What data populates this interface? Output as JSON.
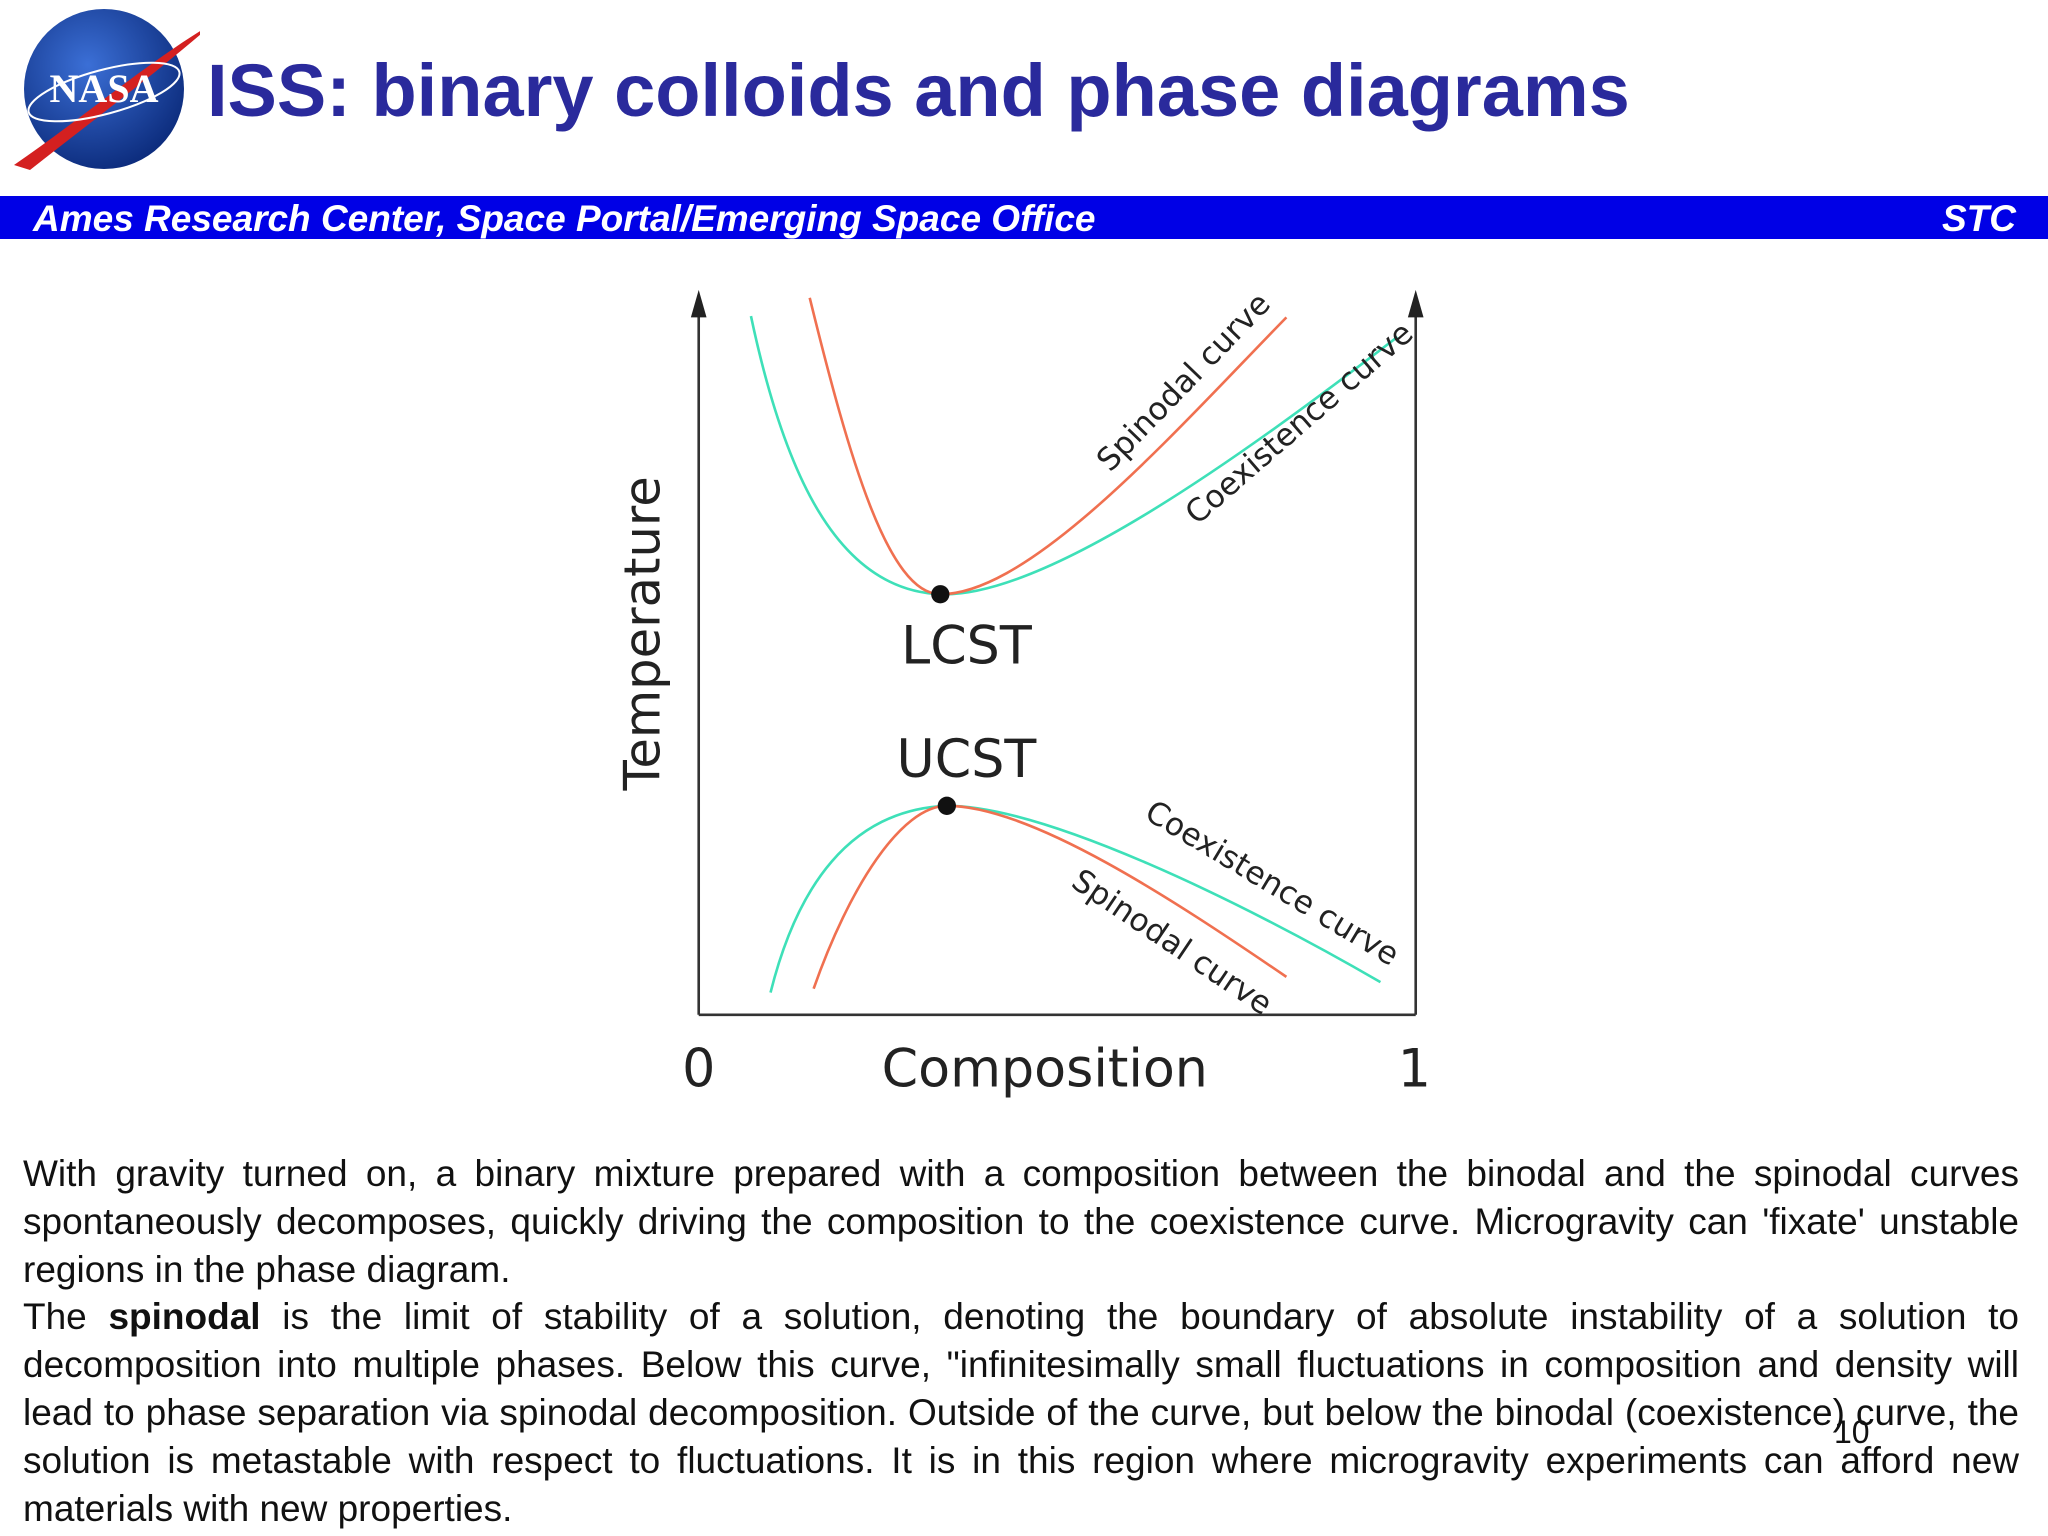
{
  "header": {
    "logo_text": "NASA",
    "title": "ISS: binary colloids and phase diagrams"
  },
  "banner": {
    "left": "Ames Research Center, Space Portal/Emerging Space Office",
    "right": "STC"
  },
  "diagram": {
    "y_axis_label": "Temperature",
    "x_axis_label": "Composition",
    "x_min_label": "0",
    "x_max_label": "1",
    "lcst_label": "LCST",
    "ucst_label": "UCST",
    "upper_spinodal_label": "Spinodal curve",
    "upper_coexistence_label": "Coexistence curve",
    "lower_coexistence_label": "Coexistence curve",
    "lower_spinodal_label": "Spinodal curve"
  },
  "body": {
    "paragraphs": [
      {
        "parts": [
          "With gravity turned on, a binary mixture prepared with a composition between the binodal and the spinodal curves spontaneously decomposes, quickly driving the composition to the coexistence curve. Microgravity can 'fixate' unstable regions in the phase diagram."
        ]
      },
      {
        "parts": [
          "The ",
          "spinodal",
          " is the limit of stability of a solution, denoting the boundary of absolute instability of a solution to decomposition into multiple phases. Below this curve, \"infinitesimally small fluctuations in composition and density will lead to phase separation via spinodal decomposition. Outside of the curve, but below the binodal (coexistence) curve,  the solution is  metastable with respect to fluctuations.  It is in this region where microgravity experiments can afford new materials with new properties."
        ]
      }
    ]
  },
  "page_number": "10"
}
